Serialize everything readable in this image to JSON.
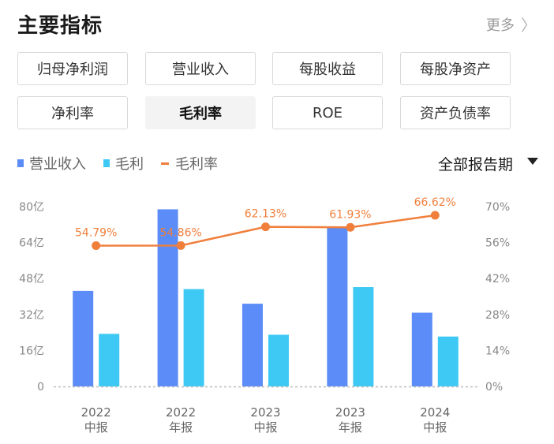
{
  "header": {
    "title": "主要指标",
    "more_label": "更多",
    "more_icon": "chevron-right-icon"
  },
  "tabs": [
    {
      "label": "归母净利润",
      "active": false
    },
    {
      "label": "营业收入",
      "active": false
    },
    {
      "label": "每股收益",
      "active": false
    },
    {
      "label": "每股净资产",
      "active": false
    },
    {
      "label": "净利率",
      "active": false
    },
    {
      "label": "毛利率",
      "active": true
    },
    {
      "label": "ROE",
      "active": false
    },
    {
      "label": "资产负债率",
      "active": false
    }
  ],
  "legend": [
    {
      "label": "营业收入",
      "color": "#5b8cf7",
      "kind": "bar"
    },
    {
      "label": "毛利",
      "color": "#3ec9f5",
      "kind": "bar"
    },
    {
      "label": "毛利率",
      "color": "#f07f3c",
      "kind": "line"
    }
  ],
  "period_select": {
    "label": "全部报告期",
    "icon": "caret-down-icon"
  },
  "chart_data": {
    "type": "bar",
    "categories": [
      [
        "2022",
        "中报"
      ],
      [
        "2022",
        "年报"
      ],
      [
        "2023",
        "中报"
      ],
      [
        "2023",
        "年报"
      ],
      [
        "2024",
        "中报"
      ]
    ],
    "series": [
      {
        "name": "营业收入",
        "type": "bar",
        "axis": "left",
        "color": "#5b8cf7",
        "values": [
          42.5,
          78.8,
          36.8,
          71.2,
          32.8
        ]
      },
      {
        "name": "毛利",
        "type": "bar",
        "axis": "left",
        "color": "#3ec9f5",
        "values": [
          23.4,
          43.3,
          23.0,
          44.2,
          22.2
        ]
      },
      {
        "name": "毛利率",
        "type": "line",
        "axis": "right",
        "color": "#f07f3c",
        "values": [
          54.79,
          54.86,
          62.13,
          61.93,
          66.62
        ],
        "labels": [
          "54.79%",
          "54.86%",
          "62.13%",
          "61.93%",
          "66.62%"
        ]
      }
    ],
    "y_left": {
      "ticks": [
        0,
        16,
        32,
        48,
        64,
        80
      ],
      "tick_labels": [
        "0",
        "16亿",
        "32亿",
        "48亿",
        "64亿",
        "80亿"
      ],
      "range": [
        0,
        80
      ]
    },
    "y_right": {
      "ticks": [
        0,
        14,
        28,
        42,
        56,
        70
      ],
      "tick_labels": [
        "0%",
        "14%",
        "28%",
        "42%",
        "56%",
        "70%"
      ],
      "range": [
        0,
        70
      ]
    },
    "grid": "baseline-dashed"
  }
}
